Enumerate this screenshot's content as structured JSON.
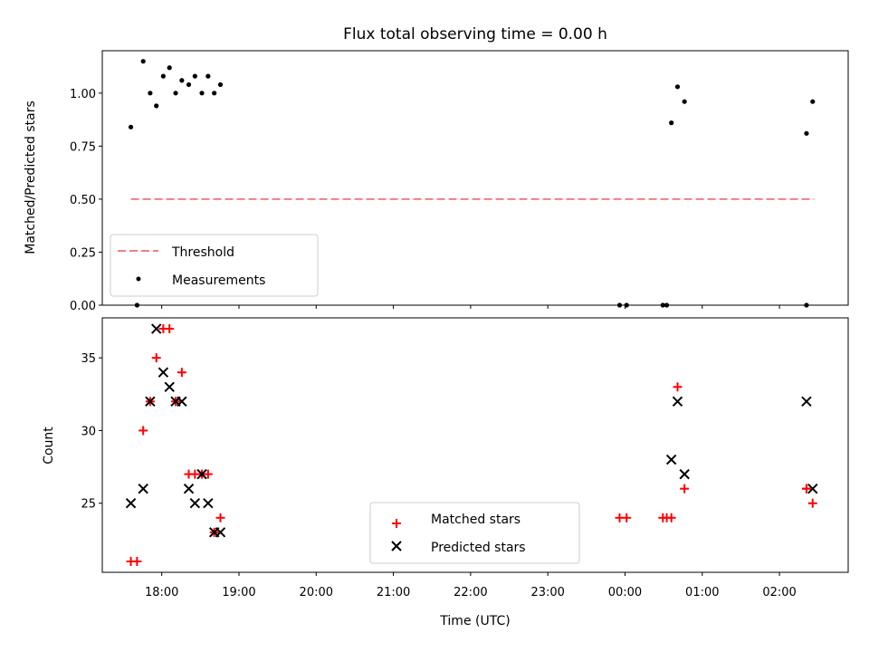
{
  "chart_data": [
    {
      "type": "scatter",
      "title": "Flux total observing time = 0.00 h",
      "xlabel": "",
      "ylabel": "Matched/Predicted stars",
      "xlim": [
        17.23,
        26.89
      ],
      "ylim": [
        0.0,
        1.2
      ],
      "yticks": [
        "0.00",
        "0.25",
        "0.50",
        "0.75",
        "1.00"
      ],
      "ytick_values": [
        0.0,
        0.25,
        0.5,
        0.75,
        1.0
      ],
      "legend": [
        "Threshold",
        "Measurements"
      ],
      "legend_location": "lower-left",
      "threshold": {
        "name": "Threshold",
        "value": 0.5,
        "x_range": [
          17.6,
          26.45
        ],
        "color": "#f08080"
      },
      "series": [
        {
          "name": "Measurements",
          "color": "#000000",
          "x": [
            17.6,
            17.68,
            17.76,
            17.85,
            17.93,
            18.02,
            18.1,
            18.18,
            18.26,
            18.35,
            18.43,
            18.52,
            18.6,
            18.68,
            18.76,
            23.93,
            24.02,
            24.49,
            24.54,
            24.6,
            24.68,
            24.77,
            26.35,
            26.35,
            26.43
          ],
          "y": [
            0.84,
            0.0,
            1.15,
            1.0,
            0.94,
            1.08,
            1.12,
            1.0,
            1.06,
            1.04,
            1.08,
            1.0,
            1.08,
            1.0,
            1.04,
            0.0,
            0.0,
            0.0,
            0.0,
            0.86,
            1.03,
            0.96,
            0.0,
            0.81,
            0.96
          ]
        }
      ]
    },
    {
      "type": "scatter",
      "title": "",
      "xlabel": "Time (UTC)",
      "ylabel": "Count",
      "xlim": [
        17.23,
        26.89
      ],
      "ylim": [
        20.25,
        37.75
      ],
      "yticks": [
        "25",
        "30",
        "35"
      ],
      "ytick_values": [
        25,
        30,
        35
      ],
      "xticks": [
        "18:00",
        "19:00",
        "20:00",
        "21:00",
        "22:00",
        "23:00",
        "00:00",
        "01:00",
        "02:00"
      ],
      "xtick_values": [
        18,
        19,
        20,
        21,
        22,
        23,
        24,
        25,
        26
      ],
      "legend": [
        "Matched stars",
        "Predicted stars"
      ],
      "legend_location": "lower-center",
      "series": [
        {
          "name": "Matched stars",
          "marker": "plus",
          "color": "#ff0000",
          "x": [
            17.6,
            17.68,
            17.76,
            17.85,
            17.93,
            18.02,
            18.1,
            18.18,
            18.26,
            18.35,
            18.43,
            18.52,
            18.6,
            18.68,
            18.76,
            23.93,
            24.02,
            24.49,
            24.54,
            24.6,
            24.68,
            24.77,
            26.35,
            26.35,
            26.43
          ],
          "y": [
            21,
            21,
            30,
            32,
            35,
            37,
            37,
            32,
            34,
            27,
            27,
            27,
            27,
            23,
            24,
            24,
            24,
            24,
            24,
            24,
            33,
            26,
            26,
            26,
            25
          ]
        },
        {
          "name": "Predicted stars",
          "marker": "x",
          "color": "#000000",
          "x": [
            17.6,
            17.76,
            17.85,
            17.93,
            18.02,
            18.1,
            18.18,
            18.26,
            18.35,
            18.43,
            18.52,
            18.6,
            18.68,
            18.76,
            24.6,
            24.68,
            24.77,
            26.35,
            26.43
          ],
          "y": [
            25,
            26,
            32,
            37,
            34,
            33,
            32,
            32,
            26,
            25,
            27,
            25,
            23,
            23,
            28,
            32,
            27,
            32,
            26
          ]
        }
      ]
    }
  ]
}
